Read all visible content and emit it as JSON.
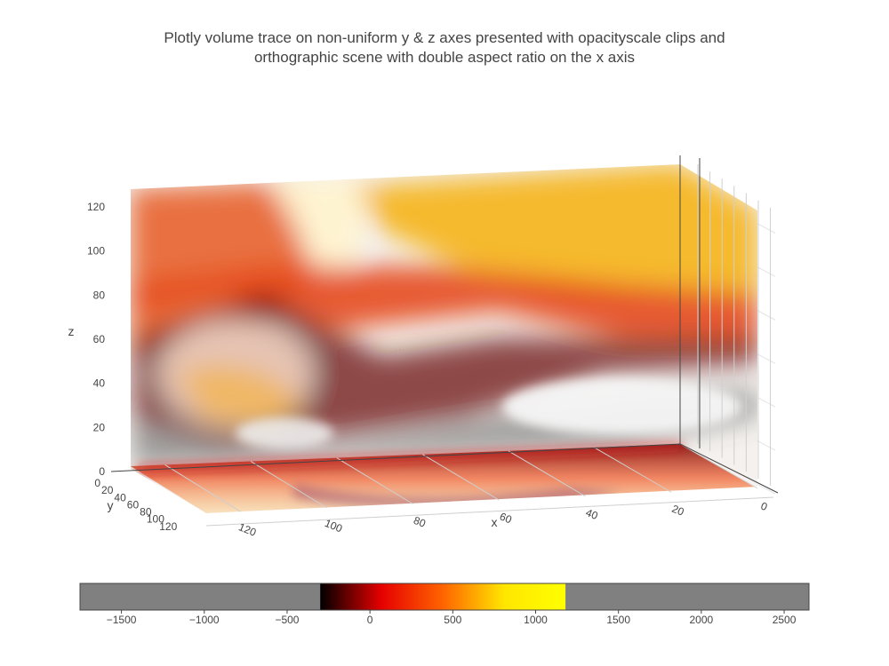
{
  "chart_data": {
    "type": "volume",
    "title_lines": [
      "Plotly volume trace on non-uniform y & z axes presented with opacityscale clips and",
      "orthographic scene with double aspect ratio on the x axis"
    ],
    "x_axis": {
      "title": "x",
      "range": [
        0,
        128
      ],
      "ticks": [
        120,
        100,
        80,
        60,
        40,
        20,
        0
      ]
    },
    "y_axis": {
      "title": "y",
      "range": [
        0,
        128
      ],
      "ticks": [
        0,
        20,
        40,
        60,
        80,
        100,
        120
      ]
    },
    "z_axis": {
      "title": "z",
      "range": [
        0,
        128
      ],
      "ticks": [
        0,
        20,
        40,
        60,
        80,
        100,
        120
      ]
    },
    "aspect_ratio": {
      "x": 2,
      "y": 1,
      "z": 1
    },
    "projection": "orthographic",
    "colorscale": "hot",
    "colorbar": {
      "orientation": "horizontal",
      "range": [
        -1750,
        2650
      ],
      "cmin": -300,
      "cmax": 1180,
      "ticks": [
        -1500,
        -1000,
        -500,
        0,
        500,
        1000,
        1500,
        2000,
        2500
      ],
      "tick_labels": [
        "−1500",
        "−1000",
        "−500",
        "0",
        "500",
        "1000",
        "1500",
        "2000",
        "2500"
      ],
      "clip_color": "#808080",
      "stops": [
        "#000000",
        "#e60000",
        "#ff6400",
        "#ffe600",
        "#ffff00"
      ]
    }
  }
}
